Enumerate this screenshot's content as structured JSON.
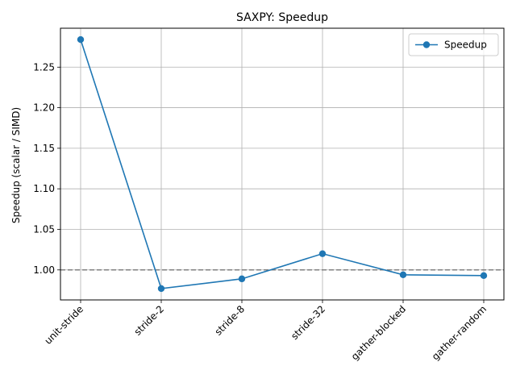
{
  "chart_data": {
    "type": "line",
    "title": "SAXPY: Speedup",
    "xlabel": "",
    "ylabel": "Speedup (scalar / SIMD)",
    "categories": [
      "unit-stride",
      "stride-2",
      "stride-8",
      "stride-32",
      "gather-blocked",
      "gather-random"
    ],
    "series": [
      {
        "name": "Speedup",
        "values": [
          1.284,
          0.977,
          0.989,
          1.02,
          0.994,
          0.993
        ],
        "color": "#1f77b4"
      }
    ],
    "ylim": [
      0.963,
      1.298
    ],
    "yticks": [
      1.0,
      1.05,
      1.1,
      1.15,
      1.2,
      1.25
    ],
    "ytick_labels": [
      "1.00",
      "1.05",
      "1.10",
      "1.15",
      "1.20",
      "1.25"
    ],
    "reference_line": {
      "y": 1.0,
      "style": "dashed",
      "color": "#808080"
    },
    "grid": true,
    "legend": "upper right"
  }
}
